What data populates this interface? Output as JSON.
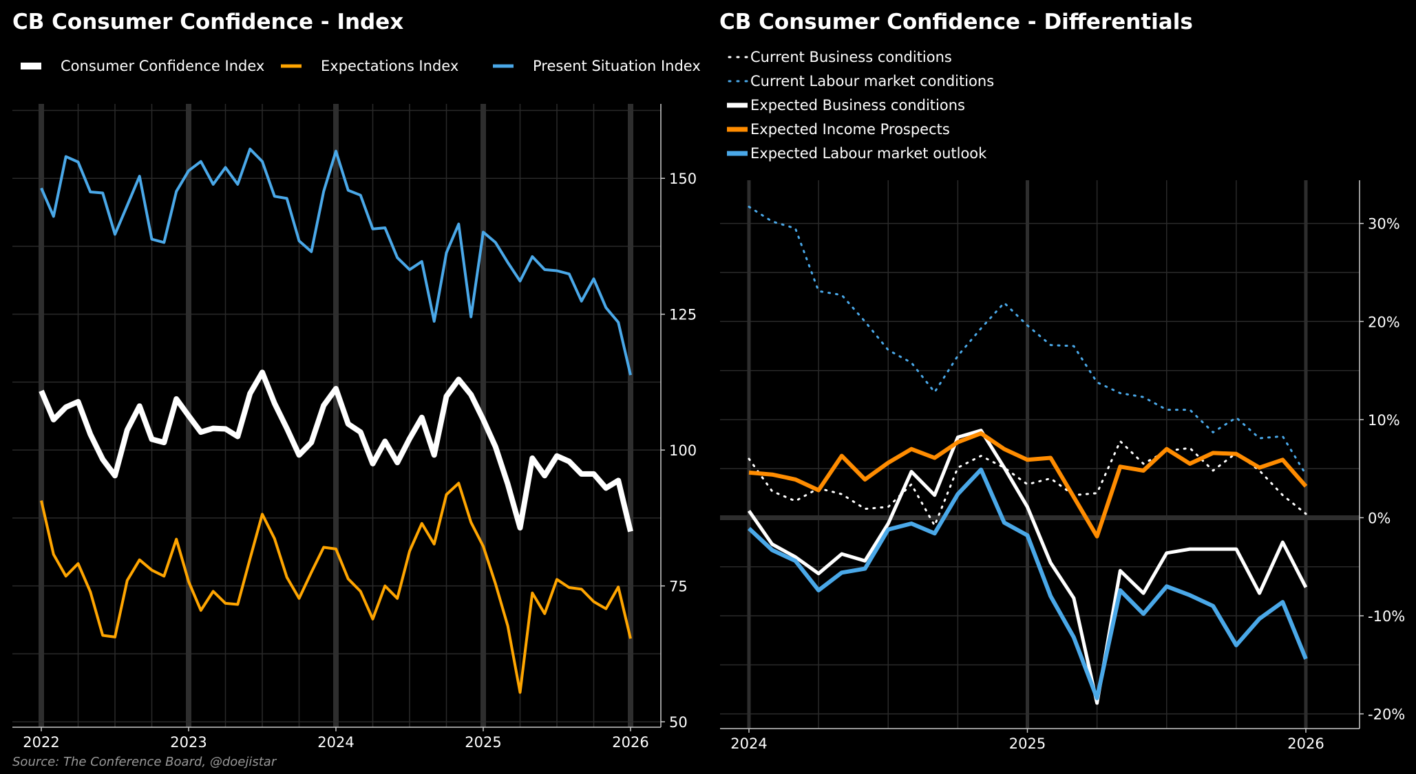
{
  "source": "Source:  The Conference Board, @doejistar",
  "chart_data": [
    {
      "type": "line",
      "title": "CB Consumer Confidence - Index",
      "xlabel": "",
      "ylabel": "",
      "x_start": "2022-01",
      "frequency": "monthly",
      "xticks": [
        "2022",
        "2023",
        "2024",
        "2025",
        "2026"
      ],
      "yticks": [
        50,
        75,
        100,
        125,
        150
      ],
      "ytick_labels": [
        "50",
        "75",
        "100",
        "125",
        "150"
      ],
      "ylim": [
        49,
        163.7
      ],
      "grid": true,
      "legend_position": "top",
      "series": [
        {
          "name": "Consumer Confidence Index",
          "color": "#ffffff",
          "width": 8,
          "dash": "",
          "values": [
            110.9,
            105.6,
            107.9,
            108.9,
            102.9,
            98.3,
            95.3,
            103.7,
            108.1,
            102,
            101.4,
            109.4,
            106.3,
            103.3,
            104,
            103.9,
            102.5,
            110.4,
            114.3,
            108.6,
            104,
            99.1,
            101.4,
            108.2,
            111.3,
            104.8,
            103.3,
            97.5,
            101.6,
            97.7,
            102.1,
            106,
            99.1,
            109.9,
            113,
            110.2,
            105.6,
            100.6,
            93.7,
            85.7,
            98.5,
            95.3,
            98.9,
            97.9,
            95.6,
            95.6,
            93,
            94.4,
            85
          ]
        },
        {
          "name": "Expectations Index",
          "color": "#ffa500",
          "width": 4,
          "dash": "",
          "values": [
            90.7,
            80.8,
            76.8,
            79.1,
            73.9,
            65.9,
            65.6,
            76,
            79.8,
            77.9,
            76.8,
            83.6,
            75.8,
            70.5,
            74,
            71.8,
            71.6,
            80,
            88.2,
            83.7,
            76.6,
            72.7,
            77.5,
            82.1,
            81.8,
            76.3,
            74,
            68.9,
            75,
            72.7,
            81.4,
            86.5,
            82.7,
            91.8,
            93.9,
            86.7,
            82.3,
            75.4,
            67.6,
            55.4,
            73.7,
            69.9,
            76.2,
            74.7,
            74.4,
            72.1,
            70.8,
            74.8,
            65.3
          ]
        },
        {
          "name": "Present Situation Index",
          "color": "#4aa8e8",
          "width": 4,
          "dash": "",
          "values": [
            148.2,
            143,
            154,
            153,
            147.5,
            147.3,
            139.7,
            145,
            150.4,
            138.8,
            138.2,
            147.6,
            151.4,
            153.1,
            148.9,
            152,
            148.9,
            155.4,
            153.1,
            146.7,
            146.3,
            138.5,
            136.5,
            147.6,
            155,
            147.8,
            146.9,
            140.7,
            140.9,
            135.4,
            133.2,
            134.7,
            123.7,
            136.3,
            141.6,
            124.5,
            140.1,
            138.2,
            134.5,
            131.1,
            135.6,
            133.2,
            133,
            132.4,
            127.4,
            131.5,
            126.2,
            123.5,
            113.8
          ]
        }
      ]
    },
    {
      "type": "line",
      "title": "CB Consumer Confidence - Differentials",
      "xlabel": "",
      "ylabel": "",
      "x_start": "2024-01",
      "frequency": "monthly",
      "xticks": [
        "2024",
        "2025",
        "2026"
      ],
      "yticks": [
        -20,
        -10,
        0,
        10,
        20,
        30
      ],
      "ytick_labels": [
        "-20%",
        "-10%",
        "0%",
        "10%",
        "20%",
        "30%"
      ],
      "ylim": [
        -21.5,
        34.4
      ],
      "grid": true,
      "legend_position": "top-left",
      "series": [
        {
          "name": "Current Business conditions",
          "color": "#ffffff",
          "width": 3,
          "dash": "2 9",
          "values": [
            6,
            2.7,
            1.7,
            3,
            2.4,
            0.9,
            1.1,
            3.4,
            -0.8,
            5.1,
            6.3,
            5.1,
            3.4,
            4,
            2.3,
            2.5,
            7.8,
            5.5,
            6.8,
            7.1,
            4.8,
            6.6,
            4.8,
            2.3,
            0.4
          ]
        },
        {
          "name": "Current Labour market conditions",
          "color": "#4aa8e8",
          "width": 3,
          "dash": "2 9",
          "values": [
            31.7,
            30.2,
            29.5,
            23.1,
            22.7,
            20,
            17.1,
            15.8,
            12.8,
            16.5,
            19.3,
            21.9,
            19.6,
            17.6,
            17.5,
            13.8,
            12.7,
            12.3,
            11,
            11,
            8.7,
            10.2,
            8.1,
            8.3,
            4.4
          ]
        },
        {
          "name": "Expected Business conditions",
          "color": "#ffffff",
          "width": 5,
          "dash": "",
          "values": [
            0.7,
            -2.7,
            -4,
            -5.7,
            -3.7,
            -4.4,
            -0.6,
            4.7,
            2.3,
            8.2,
            8.9,
            5.1,
            1.1,
            -4.6,
            -8.2,
            -18.9,
            -5.4,
            -7.7,
            -3.6,
            -3.2,
            -3.2,
            -3.2,
            -7.7,
            -2.5,
            -7.1
          ]
        },
        {
          "name": "Expected Income Prospects",
          "color": "#ff8c00",
          "width": 6,
          "dash": "",
          "values": [
            4.6,
            4.4,
            3.9,
            2.8,
            6.3,
            3.9,
            5.6,
            7,
            6.1,
            7.7,
            8.6,
            7,
            5.9,
            6.1,
            2.1,
            -1.9,
            5.2,
            4.8,
            7,
            5.5,
            6.6,
            6.5,
            5.1,
            5.9,
            3.2
          ]
        },
        {
          "name": "Expected Labour market outlook",
          "color": "#4aa8e8",
          "width": 6,
          "dash": "",
          "values": [
            -1.1,
            -3.3,
            -4.4,
            -7.4,
            -5.6,
            -5.2,
            -1.2,
            -0.6,
            -1.6,
            2.4,
            4.9,
            -0.5,
            -1.8,
            -8,
            -12.2,
            -18.4,
            -7.4,
            -9.8,
            -7,
            -7.9,
            -9,
            -13,
            -10.3,
            -8.6,
            -14.4
          ]
        }
      ]
    }
  ]
}
